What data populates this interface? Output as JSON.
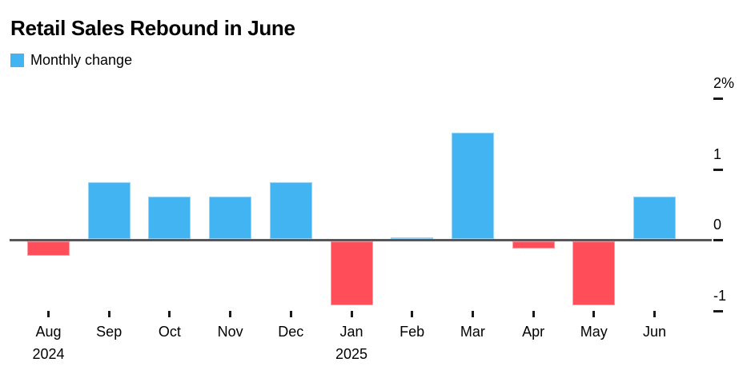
{
  "title": "Retail Sales Rebound in June",
  "legend": {
    "label": "Monthly change"
  },
  "colors": {
    "positive": "#42b4f2",
    "negative": "#ff4d59",
    "axis_line": "#57575b",
    "tick": "#1a1a1a",
    "text": "#000000",
    "background": "#ffffff"
  },
  "chart_data": {
    "type": "bar",
    "title": "Retail Sales Rebound in June",
    "series_name": "Monthly change",
    "categories": [
      "Aug",
      "Sep",
      "Oct",
      "Nov",
      "Dec",
      "Jan",
      "Feb",
      "Mar",
      "Apr",
      "May",
      "Jun"
    ],
    "category_sublabels": [
      "2024",
      "",
      "",
      "",
      "",
      "2025",
      "",
      "",
      "",
      "",
      ""
    ],
    "values": [
      -0.2,
      0.8,
      0.6,
      0.6,
      0.8,
      -0.9,
      0.02,
      1.5,
      -0.1,
      -0.9,
      0.6
    ],
    "unit": "%",
    "xlabel": "",
    "ylabel": "",
    "ylim": [
      -1.15,
      2.25
    ],
    "y_ticks": [
      {
        "value": 2,
        "label": "2%"
      },
      {
        "value": 1,
        "label": "1"
      },
      {
        "value": 0,
        "label": "0"
      },
      {
        "value": -1,
        "label": "-1"
      }
    ],
    "grid": false,
    "legend_position": "top-left",
    "bar_color_positive": "#42b4f2",
    "bar_color_negative": "#ff4d59"
  }
}
